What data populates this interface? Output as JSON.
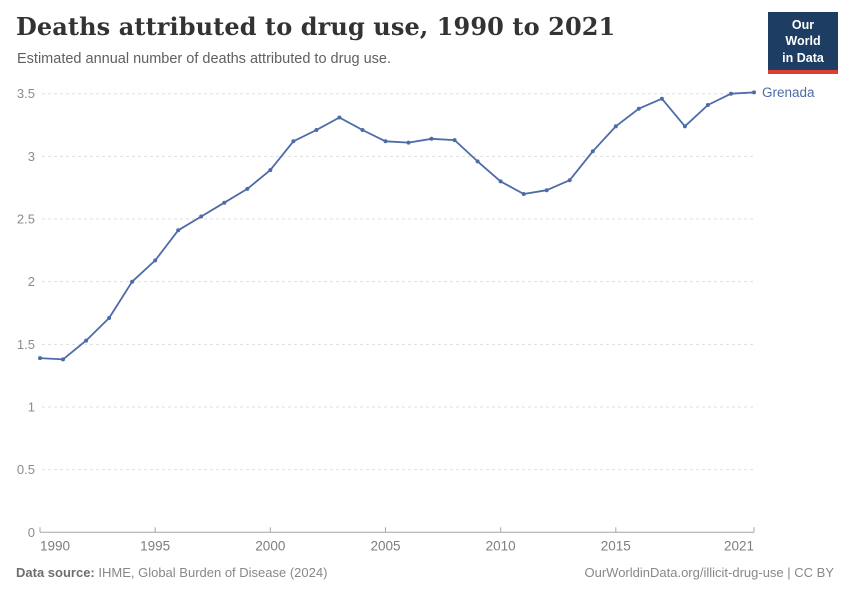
{
  "header": {
    "title": "Deaths attributed to drug use, 1990 to 2021",
    "subtitle": "Estimated annual number of deaths attributed to drug use.",
    "logo": {
      "line1": "Our World",
      "line2": "in Data",
      "bg_color": "#1d3d63",
      "accent_color": "#dc3e32"
    }
  },
  "chart_data": {
    "type": "line",
    "title": "Deaths attributed to drug use, 1990 to 2021",
    "xlabel": "",
    "ylabel": "",
    "xlim": [
      1990,
      2021
    ],
    "ylim": [
      0,
      3.5
    ],
    "x_ticks": [
      1990,
      1995,
      2000,
      2005,
      2010,
      2015,
      2021
    ],
    "y_ticks": [
      0,
      0.5,
      1,
      1.5,
      2,
      2.5,
      3,
      3.5
    ],
    "grid": "horizontal-dashed",
    "legend_position": "inline-end-label",
    "x": [
      1990,
      1991,
      1992,
      1993,
      1994,
      1995,
      1996,
      1997,
      1998,
      1999,
      2000,
      2001,
      2002,
      2003,
      2004,
      2005,
      2006,
      2007,
      2008,
      2009,
      2010,
      2011,
      2012,
      2013,
      2014,
      2015,
      2016,
      2017,
      2018,
      2019,
      2020,
      2021
    ],
    "series": [
      {
        "name": "Grenada",
        "color": "#4c6ba8",
        "values": [
          1.39,
          1.38,
          1.53,
          1.71,
          2.0,
          2.17,
          2.41,
          2.52,
          2.63,
          2.74,
          2.89,
          3.12,
          3.21,
          3.31,
          3.21,
          3.12,
          3.11,
          3.14,
          3.13,
          2.96,
          2.8,
          2.7,
          2.73,
          2.81,
          3.04,
          3.24,
          3.38,
          3.46,
          3.24,
          3.41,
          3.5,
          3.51
        ]
      }
    ],
    "axis_label_color": "#8c8c8c",
    "grid_color": "#dedede",
    "axis_line_color": "#a6a6a6"
  },
  "footer": {
    "source_label": "Data source:",
    "source_text": "IHME, Global Burden of Disease (2024)",
    "credit": "OurWorldinData.org/illicit-drug-use | CC BY"
  }
}
